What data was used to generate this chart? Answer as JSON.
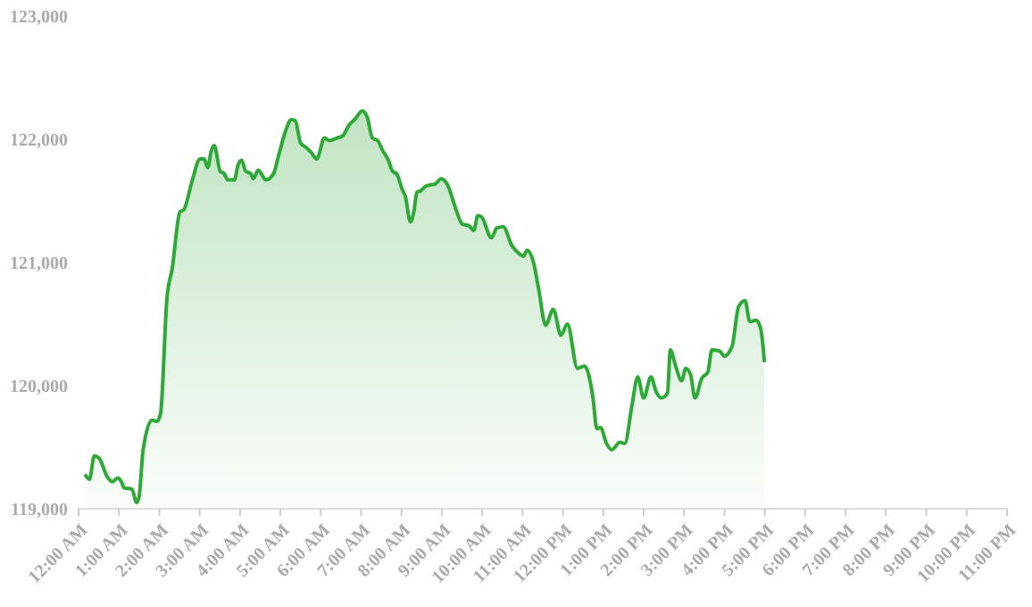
{
  "chart_data": {
    "type": "area",
    "color": "#2ea836",
    "marker": "none",
    "x": [
      0.16,
      0.27,
      0.39,
      0.51,
      0.71,
      0.84,
      0.97,
      1.06,
      1.13,
      1.32,
      1.44,
      1.5,
      1.6,
      1.82,
      1.94,
      2.03,
      2.19,
      2.32,
      2.51,
      2.61,
      2.82,
      3.01,
      3.11,
      3.2,
      3.29,
      3.36,
      3.51,
      3.61,
      3.7,
      3.86,
      3.95,
      4.04,
      4.14,
      4.27,
      4.33,
      4.45,
      4.64,
      4.83,
      4.95,
      5.12,
      5.27,
      5.37,
      5.5,
      5.65,
      5.77,
      5.9,
      6.09,
      6.21,
      6.4,
      6.55,
      6.71,
      6.84,
      7.03,
      7.15,
      7.28,
      7.41,
      7.53,
      7.66,
      7.78,
      7.88,
      8.01,
      8.1,
      8.22,
      8.31,
      8.38,
      8.47,
      8.6,
      8.73,
      8.85,
      8.98,
      9.14,
      9.35,
      9.51,
      9.66,
      9.79,
      9.89,
      9.98,
      10.23,
      10.36,
      10.52,
      10.73,
      10.92,
      11.02,
      11.11,
      11.27,
      11.4,
      11.57,
      11.76,
      11.95,
      12.11,
      12.36,
      12.53,
      12.74,
      12.84,
      12.93,
      13.08,
      13.21,
      13.41,
      13.53,
      13.71,
      13.85,
      14.0,
      14.18,
      14.31,
      14.44,
      14.59,
      14.66,
      14.79,
      14.94,
      15.04,
      15.16,
      15.27,
      15.44,
      15.59,
      15.69,
      15.88,
      16.0,
      16.19,
      16.35,
      16.51,
      16.63,
      16.78,
      16.9,
      16.99
    ],
    "values": [
      119280,
      119240,
      119430,
      119410,
      119260,
      119220,
      119250,
      119220,
      119170,
      119160,
      119050,
      119100,
      119480,
      119720,
      119710,
      119770,
      120710,
      120950,
      121410,
      121430,
      121670,
      121840,
      121840,
      121770,
      121910,
      121950,
      121740,
      121720,
      121670,
      121670,
      121790,
      121830,
      121740,
      121720,
      121680,
      121750,
      121670,
      121720,
      121860,
      122060,
      122160,
      122150,
      121970,
      121930,
      121890,
      121840,
      122010,
      121990,
      122010,
      122030,
      122120,
      122160,
      122230,
      122180,
      122010,
      121990,
      121910,
      121840,
      121740,
      121720,
      121600,
      121530,
      121330,
      121420,
      121570,
      121580,
      121620,
      121630,
      121640,
      121680,
      121630,
      121430,
      121310,
      121300,
      121260,
      121380,
      121370,
      121200,
      121280,
      121290,
      121140,
      121070,
      121050,
      121100,
      121000,
      120780,
      120490,
      120620,
      120410,
      120500,
      120140,
      120160,
      119910,
      119650,
      119660,
      119530,
      119480,
      119540,
      119530,
      119840,
      120070,
      119900,
      120070,
      119950,
      119900,
      119940,
      120290,
      120160,
      120040,
      120140,
      120090,
      119900,
      120060,
      120110,
      120290,
      120280,
      120240,
      120320,
      120640,
      120690,
      120520,
      120530,
      120460,
      120190
    ],
    "xlim": [
      0,
      23
    ],
    "xticks": [
      {
        "value": 0,
        "label": "12:00 AM"
      },
      {
        "value": 1,
        "label": "1:00 AM"
      },
      {
        "value": 2,
        "label": "2:00 AM"
      },
      {
        "value": 3,
        "label": "3:00 AM"
      },
      {
        "value": 4,
        "label": "4:00 AM"
      },
      {
        "value": 5,
        "label": "5:00 AM"
      },
      {
        "value": 6,
        "label": "6:00 AM"
      },
      {
        "value": 7,
        "label": "7:00 AM"
      },
      {
        "value": 8,
        "label": "8:00 AM"
      },
      {
        "value": 9,
        "label": "9:00 AM"
      },
      {
        "value": 10,
        "label": "10:00 AM"
      },
      {
        "value": 11,
        "label": "11:00 AM"
      },
      {
        "value": 12,
        "label": "12:00 PM"
      },
      {
        "value": 13,
        "label": "1:00 PM"
      },
      {
        "value": 14,
        "label": "2:00 PM"
      },
      {
        "value": 15,
        "label": "3:00 PM"
      },
      {
        "value": 16,
        "label": "4:00 PM"
      },
      {
        "value": 17,
        "label": "5:00 PM"
      },
      {
        "value": 18,
        "label": "6:00 PM"
      },
      {
        "value": 19,
        "label": "7:00 PM"
      },
      {
        "value": 20,
        "label": "8:00 PM"
      },
      {
        "value": 21,
        "label": "9:00 PM"
      },
      {
        "value": 22,
        "label": "10:00 PM"
      },
      {
        "value": 23,
        "label": "11:00 PM"
      }
    ],
    "ylim": [
      119000,
      123000
    ],
    "yticks": [
      {
        "value": 119000,
        "label": "119,000"
      },
      {
        "value": 120000,
        "label": "120,000"
      },
      {
        "value": 121000,
        "label": "121,000"
      },
      {
        "value": 122000,
        "label": "122,000"
      },
      {
        "value": 123000,
        "label": "123,000"
      }
    ]
  }
}
